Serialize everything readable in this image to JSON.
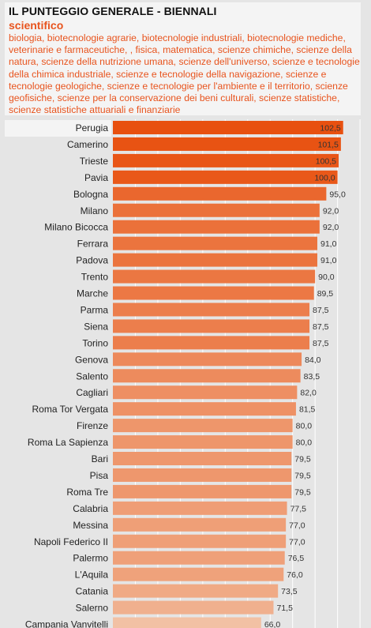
{
  "header": {
    "title": "IL PUNTEGGIO GENERALE - BIENNALI",
    "subtitle": "scientifico",
    "description": "biologia, biotecnologie agrarie, biotecnologie industriali, biotecnologie mediche, veterinarie e farmaceutiche, , fisica, matematica, scienze chimiche, scienze della natura, scienze della nutrizione umana, scienze dell'universo, scienze e tecnologie della chimica industriale, scienze e tecnologie della navigazione, scienze e tecnologie geologiche, scienze e tecnologie per l'ambiente e il territorio, scienze geofisiche, scienze per la conservazione dei beni culturali, scienze statistiche, scienze statistiche attuariali e finanziarie"
  },
  "colors": {
    "bar_dark": "#e8500f",
    "bar_light": "#f2c1a4",
    "background": "#e5e5e5",
    "highlight_row": "#f4f4f4",
    "grid": "#ffffff"
  },
  "chart_data": {
    "type": "bar",
    "orientation": "horizontal",
    "categories": [
      "Perugia",
      "Camerino",
      "Trieste",
      "Pavia",
      "Bologna",
      "Milano",
      "Milano Bicocca",
      "Ferrara",
      "Padova",
      "Trento",
      "Marche",
      "Parma",
      "Siena",
      "Torino",
      "Genova",
      "Salento",
      "Cagliari",
      "Roma Tor Vergata",
      "Firenze",
      "Roma La Sapienza",
      "Bari",
      "Pisa",
      "Roma Tre",
      "Calabria",
      "Messina",
      "Napoli Federico II",
      "Palermo",
      "L'Aquila",
      "Catania",
      "Salerno",
      "Campania Vanvitelli"
    ],
    "values": [
      102.5,
      101.5,
      100.5,
      100.0,
      95.0,
      92.0,
      92.0,
      91.0,
      91.0,
      90.0,
      89.5,
      87.5,
      87.5,
      87.5,
      84.0,
      83.5,
      82.0,
      81.5,
      80.0,
      80.0,
      79.5,
      79.5,
      79.5,
      77.5,
      77.0,
      77.0,
      76.5,
      76.0,
      73.5,
      71.5,
      66.0
    ],
    "value_labels": [
      "102,5",
      "101,5",
      "100,5",
      "100,0",
      "95,0",
      "92,0",
      "92,0",
      "91,0",
      "91,0",
      "90,0",
      "89,5",
      "87,5",
      "87,5",
      "87,5",
      "84,0",
      "83,5",
      "82,0",
      "81,5",
      "80,0",
      "80,0",
      "79,5",
      "79,5",
      "79,5",
      "77,5",
      "77,0",
      "77,0",
      "76,5",
      "76,0",
      "73,5",
      "71,5",
      "66,0"
    ],
    "xlim": [
      0,
      110
    ],
    "grid": true,
    "highlight": "Perugia"
  }
}
